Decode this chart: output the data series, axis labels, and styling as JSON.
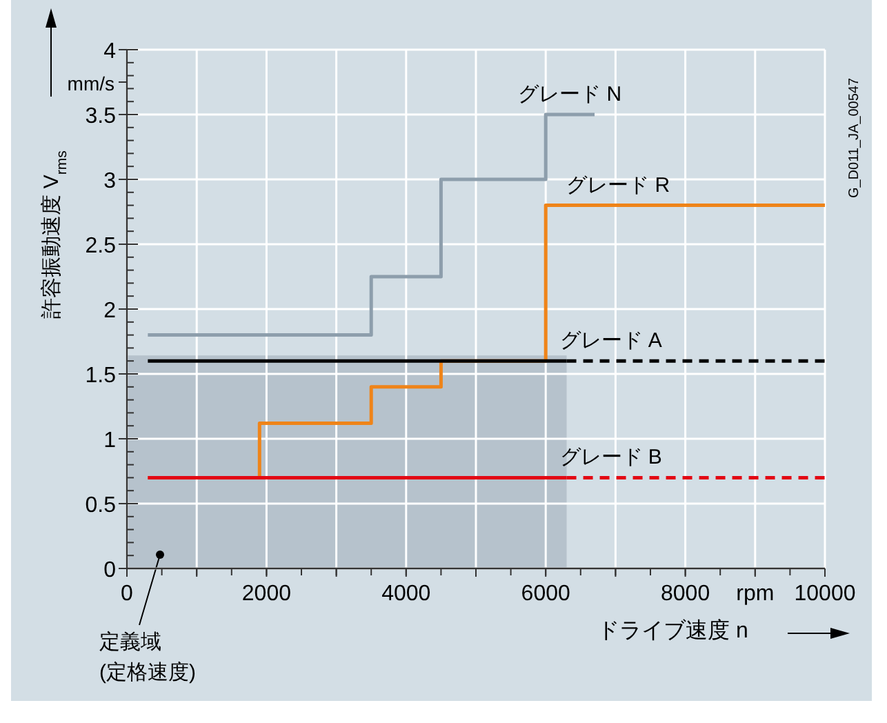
{
  "chart_data": {
    "type": "step",
    "ylabel": "許容振動速度 V$_{rms}$",
    "xlabel": "ドライブ速度 n",
    "xlim": [
      0,
      10000
    ],
    "ylim": [
      0,
      4
    ],
    "xticks": [
      0,
      {
        "value": 1000,
        "label": null
      },
      2000,
      {
        "value": 3000,
        "label": null
      },
      4000,
      {
        "value": 5000,
        "label": null
      },
      6000,
      {
        "value": 7000,
        "label": null
      },
      8000,
      {
        "value": 9000,
        "label": "rpm"
      },
      10000
    ],
    "yticks": [
      0,
      0.5,
      1,
      1.5,
      2,
      2.5,
      3,
      3.5,
      {
        "value": 3.75,
        "label": "mm/s"
      },
      4
    ],
    "grid": true,
    "line_style": "solid",
    "marker": "none",
    "series": [
      {
        "name": "グレード N",
        "color": "#8d9eac",
        "x": [
          300,
          3500,
          4500,
          6000,
          6700
        ],
        "values": [
          1.8,
          2.25,
          3.0,
          3.5,
          3.5
        ]
      },
      {
        "name": "グレード R",
        "color": "#ef8419",
        "x": [
          300,
          1900,
          3500,
          4500,
          6000,
          10000
        ],
        "values": [
          0.7,
          1.12,
          1.4,
          1.6,
          2.8,
          2.8
        ]
      },
      {
        "name": "グレード A",
        "color": "#000000",
        "x": [
          300,
          6300
        ],
        "values": [
          1.6,
          1.6
        ]
      },
      {
        "color": "#000000",
        "x": [
          6300,
          10000
        ],
        "values": [
          1.6,
          1.6
        ],
        "line_style": "dashed"
      },
      {
        "name": "グレード B",
        "color": "#e30613",
        "x": [
          300,
          6300
        ],
        "values": [
          0.7,
          0.7
        ]
      },
      {
        "color": "#e30613",
        "x": [
          6300,
          10000
        ],
        "values": [
          0.7,
          0.7
        ],
        "line_style": "dashed"
      }
    ],
    "bands": [
      {
        "axis": "x",
        "from": 0,
        "to": 6300,
        "label": "定義域\n(定格速度)",
        "color": "#b6c2cc"
      }
    ],
    "annotations": [
      "G_D011_JA_00547"
    ]
  }
}
